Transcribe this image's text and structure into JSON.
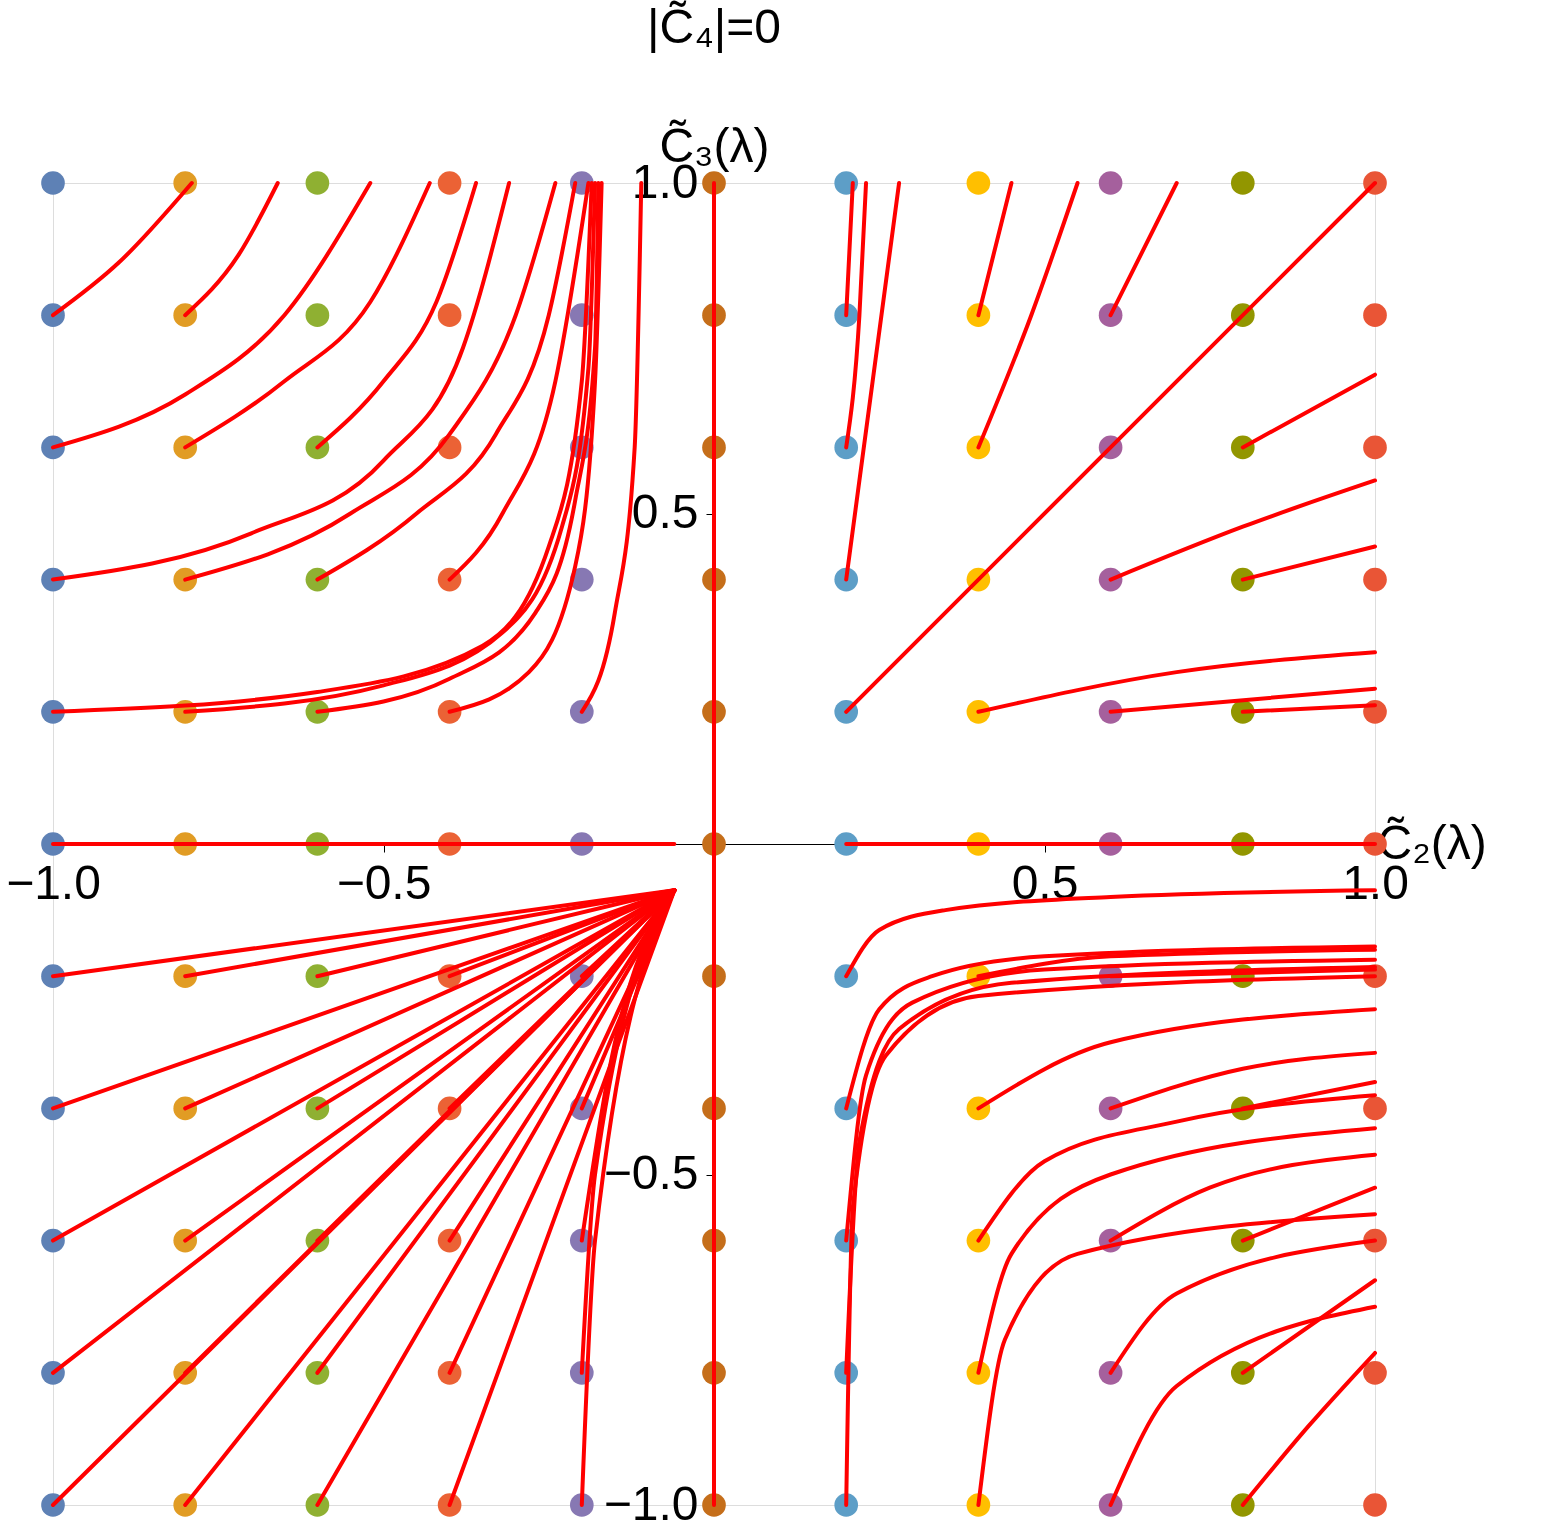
{
  "chart_data": {
    "type": "scatter",
    "title": "|C̃₄|=0",
    "xlabel": "C̃₂(λ)",
    "ylabel": "C̃₃(λ)",
    "grid": false,
    "xlim": [
      -1,
      1
    ],
    "ylim": [
      -1,
      1
    ],
    "xticks": [
      {
        "value": -1,
        "label": "−1.0"
      },
      {
        "value": -0.5,
        "label": "−0.5"
      },
      {
        "value": 0.5,
        "label": "0.5"
      },
      {
        "value": 1,
        "label": "1.0"
      }
    ],
    "yticks": [
      {
        "value": -1,
        "label": "−1.0"
      },
      {
        "value": -0.5,
        "label": "−0.5"
      },
      {
        "value": 0.5,
        "label": "0.5"
      },
      {
        "value": 1,
        "label": "1.0"
      }
    ],
    "series": [
      {
        "type": "line",
        "color": "#ff0000",
        "x": [
          -1,
          -0.06
        ],
        "values": [
          0,
          0
        ]
      },
      {
        "type": "line",
        "color": "#ff0000",
        "x": [
          0.2,
          1.0
        ],
        "values": [
          0,
          0
        ]
      },
      {
        "type": "line",
        "color": "#ff0000",
        "x": [
          0,
          0
        ],
        "values": [
          -1,
          1
        ]
      },
      {
        "type": "line",
        "color": "#ff0000",
        "x": [
          -1,
          -0.9,
          -0.79
        ],
        "values": [
          0.8,
          0.88,
          1.0
        ]
      },
      {
        "type": "line",
        "color": "#ff0000",
        "x": [
          -0.8,
          -0.72,
          -0.66
        ],
        "values": [
          0.8,
          0.89,
          1.0
        ]
      },
      {
        "type": "line",
        "color": "#ff0000",
        "x": [
          -1,
          -0.8,
          -0.65,
          -0.52
        ],
        "values": [
          0.6,
          0.68,
          0.8,
          1.0
        ]
      },
      {
        "type": "line",
        "color": "#ff0000",
        "x": [
          -0.8,
          -0.65,
          -0.52,
          -0.43
        ],
        "values": [
          0.6,
          0.7,
          0.82,
          1.0
        ]
      },
      {
        "type": "line",
        "color": "#ff0000",
        "x": [
          -0.6,
          -0.5,
          -0.42,
          -0.36
        ],
        "values": [
          0.6,
          0.7,
          0.82,
          1.0
        ]
      },
      {
        "type": "line",
        "color": "#ff0000",
        "x": [
          -1,
          -0.7,
          -0.5,
          -0.38,
          -0.31
        ],
        "values": [
          0.4,
          0.47,
          0.58,
          0.75,
          1.0
        ]
      },
      {
        "type": "line",
        "color": "#ff0000",
        "x": [
          -0.8,
          -0.55,
          -0.4,
          -0.3,
          -0.24
        ],
        "values": [
          0.4,
          0.5,
          0.62,
          0.8,
          1.0
        ]
      },
      {
        "type": "line",
        "color": "#ff0000",
        "x": [
          -0.6,
          -0.45,
          -0.33,
          -0.25,
          -0.21
        ],
        "values": [
          0.4,
          0.5,
          0.62,
          0.8,
          1.0
        ]
      },
      {
        "type": "line",
        "color": "#ff0000",
        "x": [
          -0.4,
          -0.32,
          -0.24,
          -0.19
        ],
        "values": [
          0.4,
          0.5,
          0.7,
          1.0
        ]
      },
      {
        "type": "line",
        "color": "#ff0000",
        "x": [
          -1,
          -0.6,
          -0.35,
          -0.25,
          -0.2,
          -0.185
        ],
        "values": [
          0.2,
          0.23,
          0.3,
          0.45,
          0.7,
          1.0
        ]
      },
      {
        "type": "line",
        "color": "#ff0000",
        "x": [
          -0.8,
          -0.5,
          -0.32,
          -0.23,
          -0.19,
          -0.18
        ],
        "values": [
          0.2,
          0.24,
          0.32,
          0.48,
          0.72,
          1.0
        ]
      },
      {
        "type": "line",
        "color": "#ff0000",
        "x": [
          -0.6,
          -0.4,
          -0.27,
          -0.21,
          -0.18,
          -0.175
        ],
        "values": [
          0.2,
          0.25,
          0.35,
          0.52,
          0.75,
          1.0
        ]
      },
      {
        "type": "line",
        "color": "#ff0000",
        "x": [
          -0.4,
          -0.28,
          -0.21,
          -0.18,
          -0.17
        ],
        "values": [
          0.2,
          0.26,
          0.42,
          0.7,
          1.0
        ]
      },
      {
        "type": "line",
        "color": "#ff0000",
        "x": [
          -0.2,
          -0.15,
          -0.12,
          -0.11
        ],
        "values": [
          0.2,
          0.35,
          0.6,
          1.0
        ]
      },
      {
        "type": "line",
        "color": "#ff0000",
        "x": [
          -1,
          -0.06
        ],
        "values": [
          -0.2,
          -0.07
        ]
      },
      {
        "type": "line",
        "color": "#ff0000",
        "x": [
          -0.8,
          -0.06
        ],
        "values": [
          -0.2,
          -0.07
        ]
      },
      {
        "type": "line",
        "color": "#ff0000",
        "x": [
          -0.6,
          -0.06
        ],
        "values": [
          -0.2,
          -0.07
        ]
      },
      {
        "type": "line",
        "color": "#ff0000",
        "x": [
          -0.4,
          -0.06
        ],
        "values": [
          -0.2,
          -0.07
        ]
      },
      {
        "type": "line",
        "color": "#ff0000",
        "x": [
          -0.2,
          -0.06
        ],
        "values": [
          -0.2,
          -0.07
        ]
      },
      {
        "type": "line",
        "color": "#ff0000",
        "x": [
          -1,
          -0.06
        ],
        "values": [
          -0.4,
          -0.07
        ]
      },
      {
        "type": "line",
        "color": "#ff0000",
        "x": [
          -0.8,
          -0.06
        ],
        "values": [
          -0.4,
          -0.07
        ]
      },
      {
        "type": "line",
        "color": "#ff0000",
        "x": [
          -0.6,
          -0.06
        ],
        "values": [
          -0.4,
          -0.07
        ]
      },
      {
        "type": "line",
        "color": "#ff0000",
        "x": [
          -0.4,
          -0.06
        ],
        "values": [
          -0.4,
          -0.07
        ]
      },
      {
        "type": "line",
        "color": "#ff0000",
        "x": [
          -0.2,
          -0.06
        ],
        "values": [
          -0.4,
          -0.07
        ]
      },
      {
        "type": "line",
        "color": "#ff0000",
        "x": [
          -1,
          -0.06
        ],
        "values": [
          -0.6,
          -0.07
        ]
      },
      {
        "type": "line",
        "color": "#ff0000",
        "x": [
          -0.8,
          -0.06
        ],
        "values": [
          -0.6,
          -0.07
        ]
      },
      {
        "type": "line",
        "color": "#ff0000",
        "x": [
          -0.6,
          -0.06
        ],
        "values": [
          -0.6,
          -0.07
        ]
      },
      {
        "type": "line",
        "color": "#ff0000",
        "x": [
          -0.4,
          -0.06
        ],
        "values": [
          -0.6,
          -0.07
        ]
      },
      {
        "type": "line",
        "color": "#ff0000",
        "x": [
          -0.2,
          -0.16,
          -0.06
        ],
        "values": [
          -0.6,
          -0.35,
          -0.07
        ]
      },
      {
        "type": "line",
        "color": "#ff0000",
        "x": [
          -1,
          -0.06
        ],
        "values": [
          -0.8,
          -0.07
        ]
      },
      {
        "type": "line",
        "color": "#ff0000",
        "x": [
          -0.8,
          -0.06
        ],
        "values": [
          -0.8,
          -0.07
        ]
      },
      {
        "type": "line",
        "color": "#ff0000",
        "x": [
          -0.6,
          -0.06
        ],
        "values": [
          -0.8,
          -0.07
        ]
      },
      {
        "type": "line",
        "color": "#ff0000",
        "x": [
          -0.4,
          -0.06
        ],
        "values": [
          -0.8,
          -0.07
        ]
      },
      {
        "type": "line",
        "color": "#ff0000",
        "x": [
          -0.2,
          -0.18,
          -0.06
        ],
        "values": [
          -0.8,
          -0.5,
          -0.07
        ]
      },
      {
        "type": "line",
        "color": "#ff0000",
        "x": [
          -1,
          -0.06
        ],
        "values": [
          -1.0,
          -0.07
        ]
      },
      {
        "type": "line",
        "color": "#ff0000",
        "x": [
          -0.8,
          -0.06
        ],
        "values": [
          -1.0,
          -0.07
        ]
      },
      {
        "type": "line",
        "color": "#ff0000",
        "x": [
          -0.6,
          -0.06
        ],
        "values": [
          -1.0,
          -0.07
        ]
      },
      {
        "type": "line",
        "color": "#ff0000",
        "x": [
          -0.4,
          -0.06
        ],
        "values": [
          -1.0,
          -0.07
        ]
      },
      {
        "type": "line",
        "color": "#ff0000",
        "x": [
          -0.2,
          -0.18,
          -0.06
        ],
        "values": [
          -1.0,
          -0.6,
          -0.07
        ]
      },
      {
        "type": "line",
        "color": "#ff0000",
        "x": [
          0.2,
          0.21
        ],
        "values": [
          0.8,
          1.0
        ]
      },
      {
        "type": "line",
        "color": "#ff0000",
        "x": [
          0.2,
          0.22,
          0.23
        ],
        "values": [
          0.6,
          0.8,
          1.0
        ]
      },
      {
        "type": "line",
        "color": "#ff0000",
        "x": [
          0.2,
          0.24,
          0.28
        ],
        "values": [
          0.4,
          0.7,
          1.0
        ]
      },
      {
        "type": "line",
        "color": "#ff0000",
        "x": [
          0.4,
          0.45
        ],
        "values": [
          0.8,
          1.0
        ]
      },
      {
        "type": "line",
        "color": "#ff0000",
        "x": [
          0.4,
          0.48,
          0.55
        ],
        "values": [
          0.6,
          0.8,
          1.0
        ]
      },
      {
        "type": "line",
        "color": "#ff0000",
        "x": [
          0.6,
          0.7
        ],
        "values": [
          0.8,
          1.0
        ]
      },
      {
        "type": "line",
        "color": "#ff0000",
        "x": [
          0.2,
          1.0
        ],
        "values": [
          0.2,
          1.0
        ]
      },
      {
        "type": "line",
        "color": "#ff0000",
        "x": [
          0.8,
          1.0
        ],
        "values": [
          0.6,
          0.71
        ]
      },
      {
        "type": "line",
        "color": "#ff0000",
        "x": [
          0.6,
          0.8,
          1.0
        ],
        "values": [
          0.4,
          0.48,
          0.55
        ]
      },
      {
        "type": "line",
        "color": "#ff0000",
        "x": [
          0.8,
          1.0
        ],
        "values": [
          0.4,
          0.45
        ]
      },
      {
        "type": "line",
        "color": "#ff0000",
        "x": [
          0.4,
          0.7,
          1.0
        ],
        "values": [
          0.2,
          0.26,
          0.29
        ]
      },
      {
        "type": "line",
        "color": "#ff0000",
        "x": [
          0.6,
          1.0
        ],
        "values": [
          0.2,
          0.235
        ]
      },
      {
        "type": "line",
        "color": "#ff0000",
        "x": [
          0.8,
          1.0
        ],
        "values": [
          0.2,
          0.21
        ]
      },
      {
        "type": "line",
        "color": "#ff0000",
        "x": [
          0.2,
          0.25,
          0.35,
          0.6,
          1.0
        ],
        "values": [
          -0.2,
          -0.13,
          -0.1,
          -0.08,
          -0.07
        ]
      },
      {
        "type": "line",
        "color": "#ff0000",
        "x": [
          0.2,
          0.25,
          0.33,
          0.5,
          1.0
        ],
        "values": [
          -0.4,
          -0.25,
          -0.2,
          -0.17,
          -0.155
        ]
      },
      {
        "type": "line",
        "color": "#ff0000",
        "x": [
          0.2,
          0.23,
          0.3,
          0.5,
          1.0
        ],
        "values": [
          -0.6,
          -0.35,
          -0.24,
          -0.19,
          -0.175
        ]
      },
      {
        "type": "line",
        "color": "#ff0000",
        "x": [
          0.2,
          0.22,
          0.28,
          0.45,
          1.0
        ],
        "values": [
          -0.8,
          -0.45,
          -0.28,
          -0.21,
          -0.186
        ]
      },
      {
        "type": "line",
        "color": "#ff0000",
        "x": [
          0.2,
          0.21,
          0.26,
          0.4,
          1.0
        ],
        "values": [
          -1.0,
          -0.55,
          -0.32,
          -0.23,
          -0.2
        ]
      },
      {
        "type": "line",
        "color": "#ff0000",
        "x": [
          0.4,
          0.6,
          1.0
        ],
        "values": [
          -0.2,
          -0.17,
          -0.16
        ]
      },
      {
        "type": "line",
        "color": "#ff0000",
        "x": [
          0.4,
          0.6,
          1.0
        ],
        "values": [
          -0.4,
          -0.3,
          -0.25
        ]
      },
      {
        "type": "line",
        "color": "#ff0000",
        "x": [
          0.6,
          1.0
        ],
        "values": [
          -0.2,
          -0.19
        ]
      },
      {
        "type": "line",
        "color": "#ff0000",
        "x": [
          0.6,
          0.8,
          1.0
        ],
        "values": [
          -0.4,
          -0.34,
          -0.316
        ]
      },
      {
        "type": "line",
        "color": "#ff0000",
        "x": [
          0.8,
          1.0
        ],
        "values": [
          -0.4,
          -0.36
        ]
      },
      {
        "type": "line",
        "color": "#ff0000",
        "x": [
          0.4,
          0.5,
          0.7,
          1.0
        ],
        "values": [
          -0.6,
          -0.48,
          -0.42,
          -0.38
        ]
      },
      {
        "type": "line",
        "color": "#ff0000",
        "x": [
          0.4,
          0.45,
          0.6,
          1.0
        ],
        "values": [
          -0.8,
          -0.62,
          -0.5,
          -0.43
        ]
      },
      {
        "type": "line",
        "color": "#ff0000",
        "x": [
          0.4,
          0.44,
          0.55,
          1.0
        ],
        "values": [
          -1.0,
          -0.75,
          -0.62,
          -0.56
        ]
      },
      {
        "type": "line",
        "color": "#ff0000",
        "x": [
          0.6,
          0.75,
          1.0
        ],
        "values": [
          -0.6,
          -0.52,
          -0.47
        ]
      },
      {
        "type": "line",
        "color": "#ff0000",
        "x": [
          0.8,
          1.0
        ],
        "values": [
          -0.6,
          -0.52
        ]
      },
      {
        "type": "line",
        "color": "#ff0000",
        "x": [
          0.6,
          0.7,
          1.0
        ],
        "values": [
          -0.8,
          -0.68,
          -0.6
        ]
      },
      {
        "type": "line",
        "color": "#ff0000",
        "x": [
          0.8,
          1.0
        ],
        "values": [
          -0.8,
          -0.66
        ]
      },
      {
        "type": "line",
        "color": "#ff0000",
        "x": [
          0.6,
          0.7,
          1.0
        ],
        "values": [
          -1.0,
          -0.82,
          -0.7
        ]
      },
      {
        "type": "line",
        "color": "#ff0000",
        "x": [
          0.8,
          0.9,
          1.0
        ],
        "values": [
          -1.0,
          -0.88,
          -0.77
        ]
      },
      {
        "marker": "circle",
        "color": "#5e81b5",
        "x": [
          -1,
          -1,
          -1,
          -1,
          -1,
          -1,
          -1,
          -1,
          -1,
          -1,
          -1
        ],
        "values": [
          -1,
          -0.8,
          -0.6,
          -0.4,
          -0.2,
          0,
          0.2,
          0.4,
          0.6,
          0.8,
          1
        ]
      },
      {
        "marker": "circle",
        "color": "#e19c24",
        "x": [
          -0.8,
          -0.8,
          -0.8,
          -0.8,
          -0.8,
          -0.8,
          -0.8,
          -0.8,
          -0.8,
          -0.8,
          -0.8
        ],
        "values": [
          -1,
          -0.8,
          -0.6,
          -0.4,
          -0.2,
          0,
          0.2,
          0.4,
          0.6,
          0.8,
          1
        ]
      },
      {
        "marker": "circle",
        "color": "#8fb032",
        "x": [
          -0.6,
          -0.6,
          -0.6,
          -0.6,
          -0.6,
          -0.6,
          -0.6,
          -0.6,
          -0.6,
          -0.6,
          -0.6
        ],
        "values": [
          -1,
          -0.8,
          -0.6,
          -0.4,
          -0.2,
          0,
          0.2,
          0.4,
          0.6,
          0.8,
          1
        ]
      },
      {
        "marker": "circle",
        "color": "#eb6235",
        "x": [
          -0.4,
          -0.4,
          -0.4,
          -0.4,
          -0.4,
          -0.4,
          -0.4,
          -0.4,
          -0.4,
          -0.4,
          -0.4
        ],
        "values": [
          -1,
          -0.8,
          -0.6,
          -0.4,
          -0.2,
          0,
          0.2,
          0.4,
          0.6,
          0.8,
          1
        ]
      },
      {
        "marker": "circle",
        "color": "#8778b3",
        "x": [
          -0.2,
          -0.2,
          -0.2,
          -0.2,
          -0.2,
          -0.2,
          -0.2,
          -0.2,
          -0.2,
          -0.2,
          -0.2
        ],
        "values": [
          -1,
          -0.8,
          -0.6,
          -0.4,
          -0.2,
          0,
          0.2,
          0.4,
          0.6,
          0.8,
          1
        ]
      },
      {
        "marker": "circle",
        "color": "#c56e1a",
        "x": [
          0,
          0,
          0,
          0,
          0,
          0,
          0,
          0,
          0,
          0,
          0
        ],
        "values": [
          -1,
          -0.8,
          -0.6,
          -0.4,
          -0.2,
          0,
          0.2,
          0.4,
          0.6,
          0.8,
          1
        ]
      },
      {
        "marker": "circle",
        "color": "#5d9ec7",
        "x": [
          0.2,
          0.2,
          0.2,
          0.2,
          0.2,
          0.2,
          0.2,
          0.2,
          0.2,
          0.2,
          0.2
        ],
        "values": [
          -1,
          -0.8,
          -0.6,
          -0.4,
          -0.2,
          0,
          0.2,
          0.4,
          0.6,
          0.8,
          1
        ]
      },
      {
        "marker": "circle",
        "color": "#ffbf00",
        "x": [
          0.4,
          0.4,
          0.4,
          0.4,
          0.4,
          0.4,
          0.4,
          0.4,
          0.4,
          0.4,
          0.4
        ],
        "values": [
          -1,
          -0.8,
          -0.6,
          -0.4,
          -0.2,
          0,
          0.2,
          0.4,
          0.6,
          0.8,
          1
        ]
      },
      {
        "marker": "circle",
        "color": "#a5609d",
        "x": [
          0.6,
          0.6,
          0.6,
          0.6,
          0.6,
          0.6,
          0.6,
          0.6,
          0.6,
          0.6,
          0.6
        ],
        "values": [
          -1,
          -0.8,
          -0.6,
          -0.4,
          -0.2,
          0,
          0.2,
          0.4,
          0.6,
          0.8,
          1
        ]
      },
      {
        "marker": "circle",
        "color": "#929600",
        "x": [
          0.8,
          0.8,
          0.8,
          0.8,
          0.8,
          0.8,
          0.8,
          0.8,
          0.8,
          0.8,
          0.8
        ],
        "values": [
          -1,
          -0.8,
          -0.6,
          -0.4,
          -0.2,
          0,
          0.2,
          0.4,
          0.6,
          0.8,
          1
        ]
      },
      {
        "marker": "circle",
        "color": "#e95536",
        "x": [
          1,
          1,
          1,
          1,
          1,
          1,
          1,
          1,
          1,
          1,
          1
        ],
        "values": [
          -1,
          -0.8,
          -0.6,
          -0.4,
          -0.2,
          0,
          0.2,
          0.4,
          0.6,
          0.8,
          1
        ]
      }
    ]
  }
}
